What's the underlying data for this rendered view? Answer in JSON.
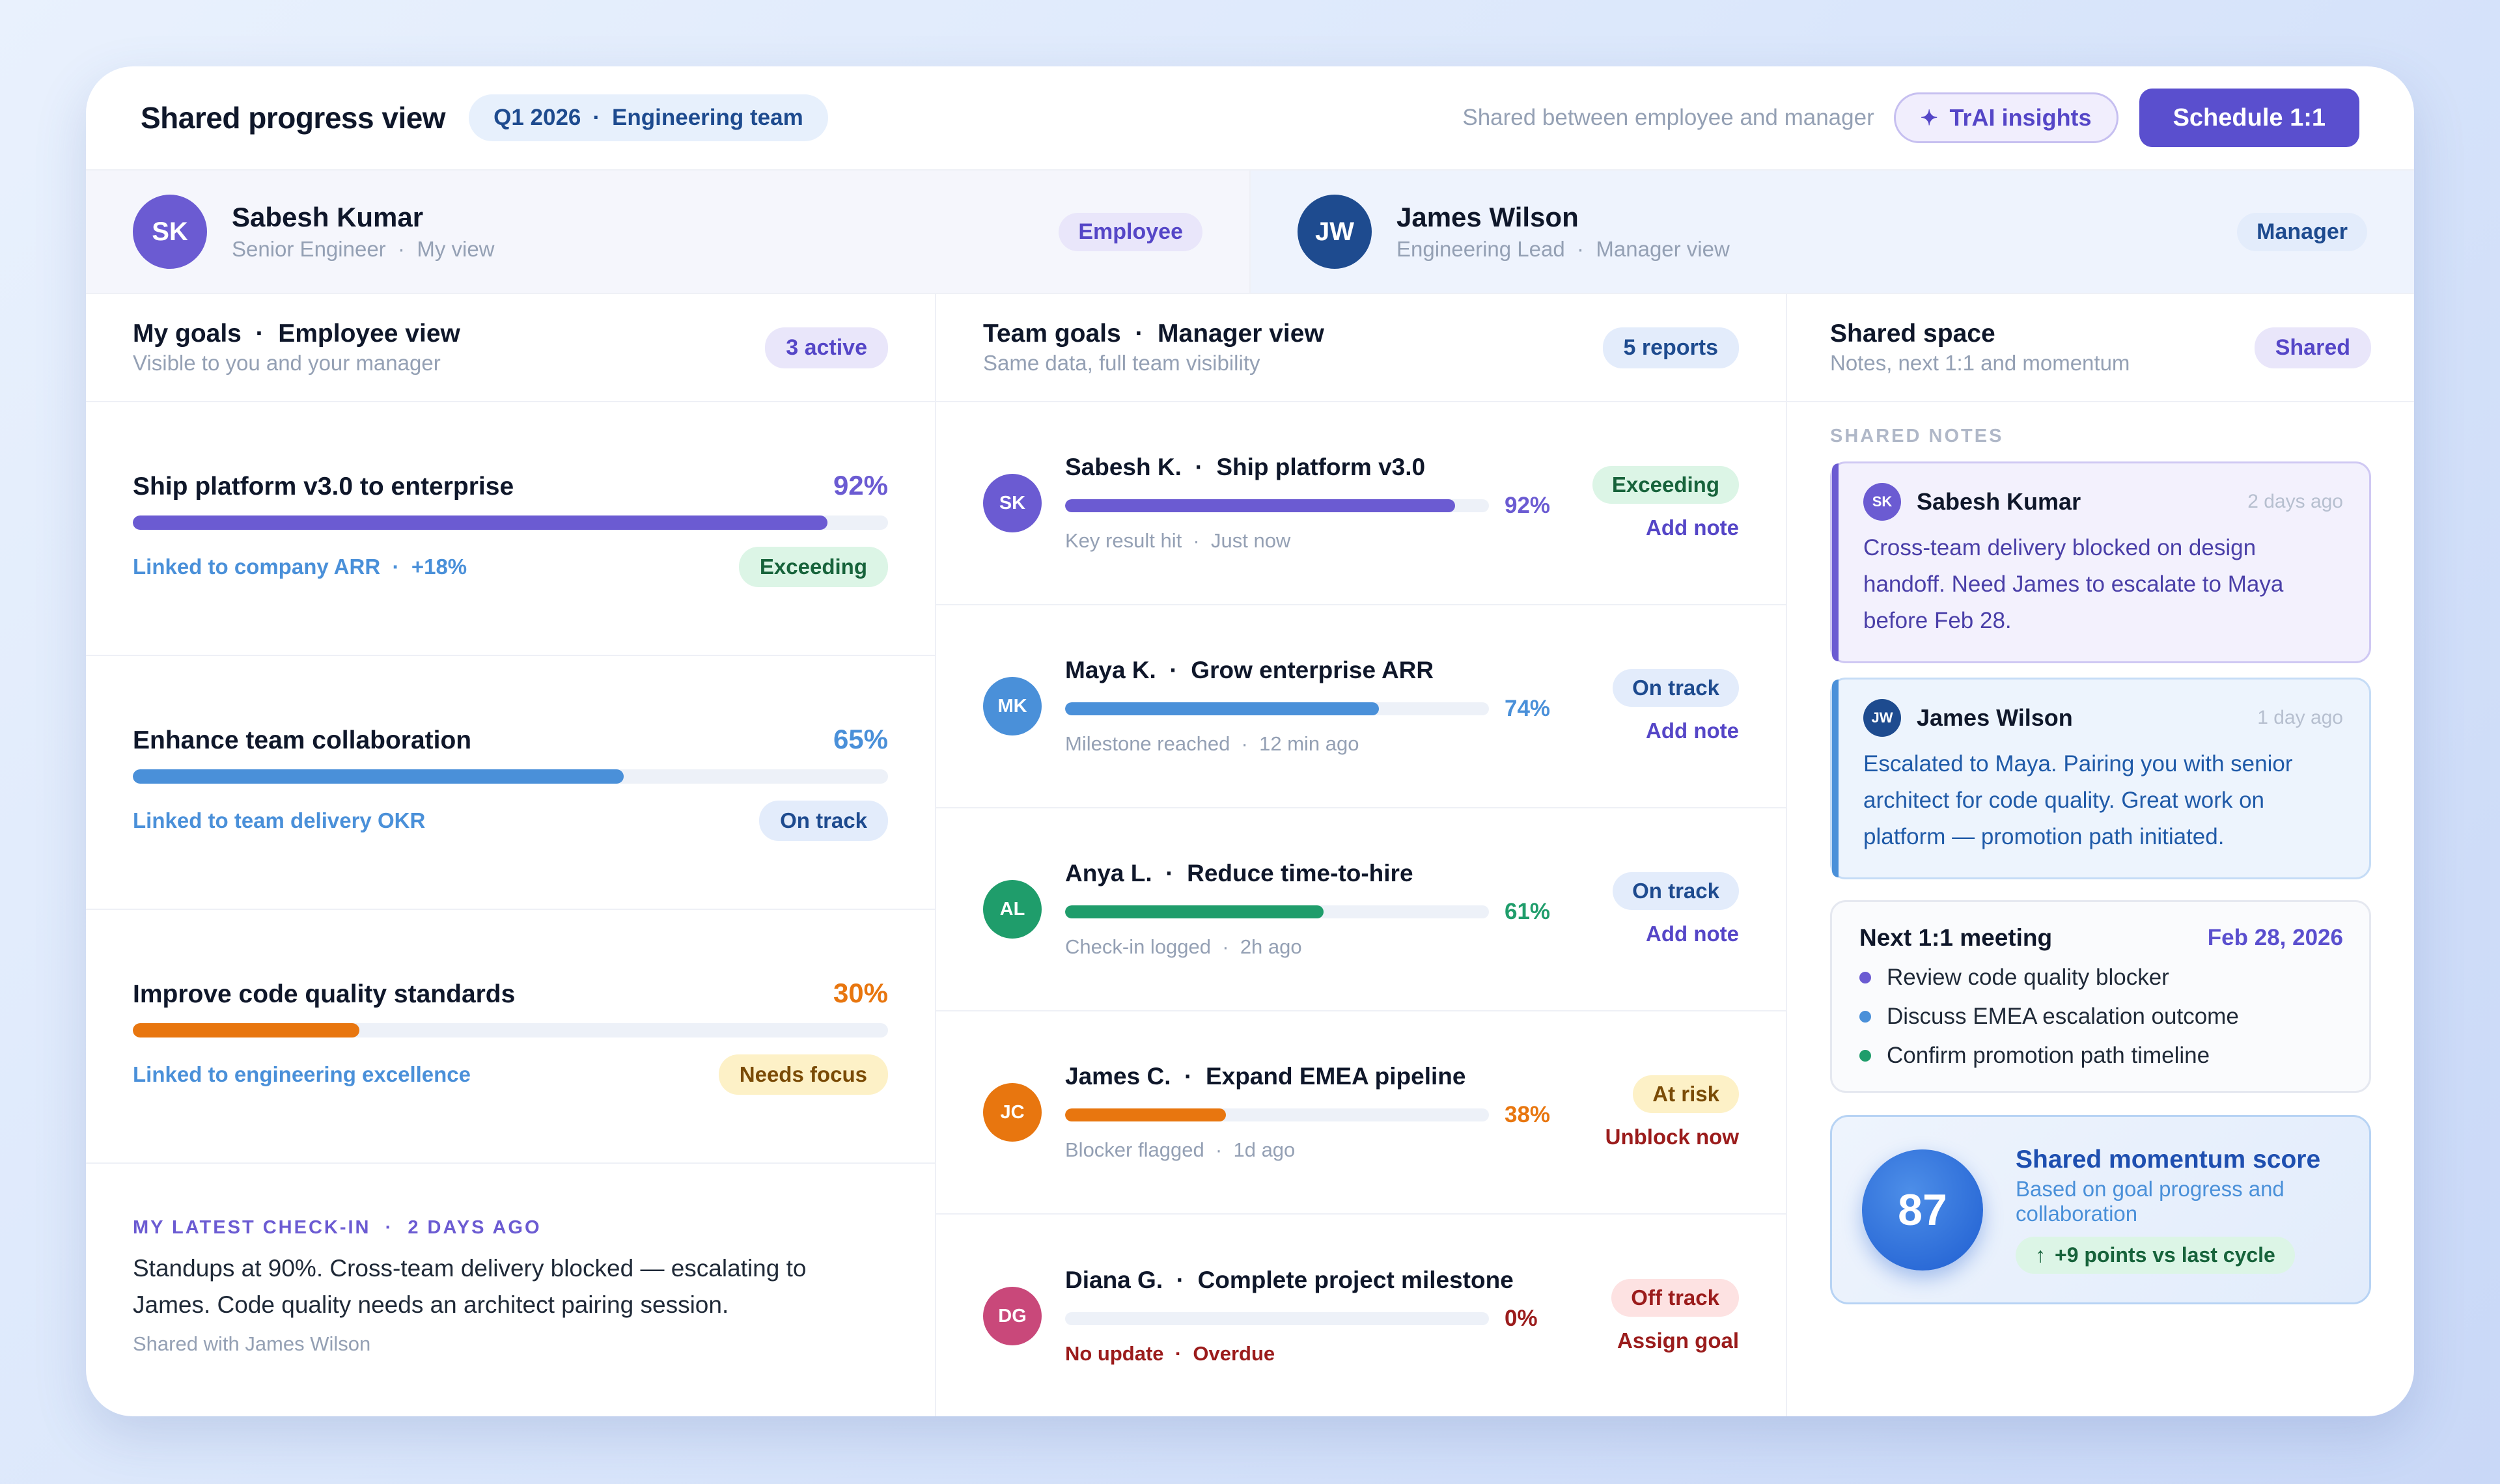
{
  "header": {
    "title": "Shared progress view",
    "period": "Q1 2026",
    "team": "Engineering team",
    "shared_text": "Shared between employee and manager",
    "insights_label": "TrAI insights",
    "schedule_label": "Schedule 1:1"
  },
  "people": {
    "employee": {
      "initials": "SK",
      "name": "Sabesh Kumar",
      "title": "Senior Engineer",
      "view": "My view",
      "role": "Employee"
    },
    "manager": {
      "initials": "JW",
      "name": "James Wilson",
      "title": "Engineering Lead",
      "view": "Manager view",
      "role": "Manager"
    }
  },
  "my_goals": {
    "title": "My goals",
    "view": "Employee view",
    "subtitle": "Visible to you and your manager",
    "count": "3 active",
    "goals": [
      {
        "title": "Ship platform v3.0 to enterprise",
        "pct_label": "92%",
        "progress": 92,
        "link": "Linked to company ARR",
        "delta": "+18%",
        "status": "Exceeding"
      },
      {
        "title": "Enhance team collaboration",
        "pct_label": "65%",
        "progress": 65,
        "link": "Linked to team delivery OKR",
        "status": "On track"
      },
      {
        "title": "Improve code quality standards",
        "pct_label": "30%",
        "progress": 30,
        "link": "Linked to engineering excellence",
        "status": "Needs focus"
      }
    ],
    "checkin": {
      "label": "MY LATEST CHECK-IN",
      "when": "2 DAYS AGO",
      "text": "Standups at 90%. Cross-team delivery blocked — escalating to James. Code quality needs an architect pairing session.",
      "footer": "Shared with James Wilson"
    }
  },
  "team_goals": {
    "title": "Team goals",
    "view": "Manager view",
    "subtitle": "Same data, full team visibility",
    "count": "5 reports",
    "rows": [
      {
        "initials": "SK",
        "name": "Sabesh K.",
        "goal": "Ship platform v3.0",
        "pct_label": "92%",
        "progress": 92,
        "meta1": "Key result hit",
        "meta2": "Just now",
        "status": "Exceeding",
        "action": "Add note"
      },
      {
        "initials": "MK",
        "name": "Maya K.",
        "goal": "Grow enterprise ARR",
        "pct_label": "74%",
        "progress": 74,
        "meta1": "Milestone reached",
        "meta2": "12 min ago",
        "status": "On track",
        "action": "Add note"
      },
      {
        "initials": "AL",
        "name": "Anya L.",
        "goal": "Reduce time-to-hire",
        "pct_label": "61%",
        "progress": 61,
        "meta1": "Check-in logged",
        "meta2": "2h ago",
        "status": "On track",
        "action": "Add note"
      },
      {
        "initials": "JC",
        "name": "James C.",
        "goal": "Expand EMEA pipeline",
        "pct_label": "38%",
        "progress": 38,
        "meta1": "Blocker flagged",
        "meta2": "1d ago",
        "status": "At risk",
        "action": "Unblock now"
      },
      {
        "initials": "DG",
        "name": "Diana G.",
        "goal": "Complete project milestone",
        "pct_label": "0%",
        "progress": 0,
        "meta1": "No update",
        "meta2": "Overdue",
        "status": "Off track",
        "action": "Assign goal"
      }
    ]
  },
  "shared_space": {
    "title": "Shared space",
    "subtitle": "Notes, next 1:1 and momentum",
    "badge": "Shared",
    "notes_label": "SHARED NOTES",
    "notes": [
      {
        "initials": "SK",
        "name": "Sabesh Kumar",
        "time": "2 days ago",
        "text": "Cross-team delivery blocked on design handoff. Need James to escalate to Maya before Feb 28."
      },
      {
        "initials": "JW",
        "name": "James Wilson",
        "time": "1 day ago",
        "text": "Escalated to Maya. Pairing you with senior architect for code quality. Great work on platform — promotion path initiated."
      }
    ],
    "meeting": {
      "title": "Next 1:1 meeting",
      "date": "Feb 28, 2026",
      "items": [
        "Review code quality blocker",
        "Discuss EMEA escalation outcome",
        "Confirm promotion path timeline"
      ]
    },
    "momentum": {
      "score": "87",
      "title": "Shared momentum score",
      "subtitle": "Based on goal progress and collaboration",
      "delta": "+9 points vs last cycle"
    }
  },
  "colors": {
    "purple": "#6b5bd2",
    "blue": "#4a90d9",
    "green": "#1f9d6b",
    "orange": "#e8760f",
    "pink": "#c9487a",
    "navy": "#1e4b8f"
  }
}
